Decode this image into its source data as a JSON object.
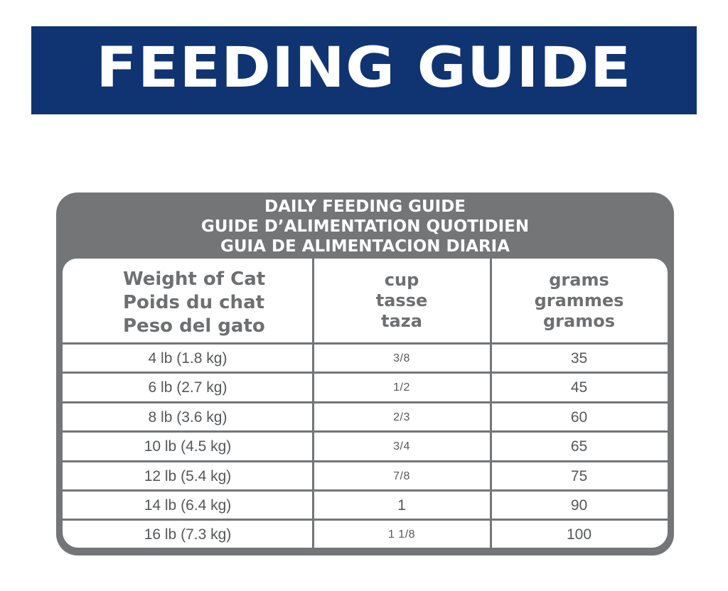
{
  "banner": {
    "title": "FEEDING GUIDE"
  },
  "card": {
    "heading": [
      "DAILY FEEDING GUIDE",
      "GUIDE D’ALIMENTATION QUOTIDIEN",
      "GUIA DE ALIMENTACION DIARIA"
    ]
  },
  "table": {
    "headers": {
      "weight": [
        "Weight of Cat",
        "Poids du chat",
        "Peso del gato"
      ],
      "cup": [
        "cup",
        "tasse",
        "taza"
      ],
      "grams": [
        "grams",
        "grammes",
        "gramos"
      ]
    },
    "rows": [
      {
        "weight": "4 lb (1.8 kg)",
        "cup": "3/8",
        "grams": "35"
      },
      {
        "weight": "6 lb (2.7 kg)",
        "cup": "1/2",
        "grams": "45"
      },
      {
        "weight": "8 lb (3.6 kg)",
        "cup": "2/3",
        "grams": "60"
      },
      {
        "weight": "10 lb (4.5 kg)",
        "cup": "3/4",
        "grams": "65"
      },
      {
        "weight": "12 lb (5.4 kg)",
        "cup": "7/8",
        "grams": "75"
      },
      {
        "weight": "14 lb (6.4 kg)",
        "cup": "1",
        "grams": "90"
      },
      {
        "weight": "16 lb (7.3 kg)",
        "cup": "1 1/8",
        "grams": "100"
      }
    ]
  },
  "colors": {
    "banner_blue": "#0f3471",
    "card_gray": "#737577",
    "header_text": "#6d6f71",
    "cell_text": "#555759"
  }
}
